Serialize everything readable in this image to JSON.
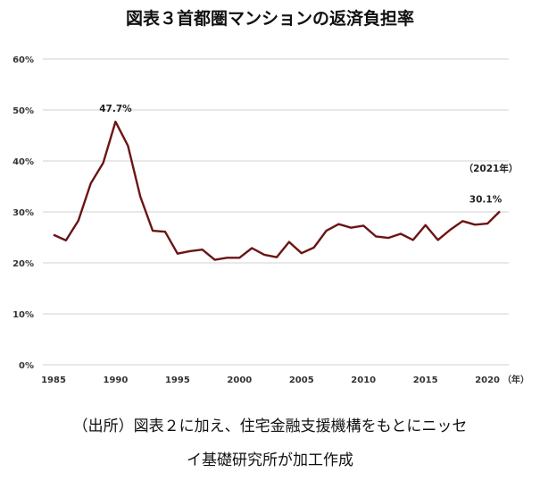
{
  "chart_data": {
    "type": "line",
    "title": "図表３首都圏マンションの返済負担率",
    "x": [
      1985,
      1986,
      1987,
      1988,
      1989,
      1990,
      1991,
      1992,
      1993,
      1994,
      1995,
      1996,
      1997,
      1998,
      1999,
      2000,
      2001,
      2002,
      2003,
      2004,
      2005,
      2006,
      2007,
      2008,
      2009,
      2010,
      2011,
      2012,
      2013,
      2014,
      2015,
      2016,
      2017,
      2018,
      2019,
      2020,
      2021
    ],
    "series": [
      {
        "values": [
          25.5,
          24.4,
          28.3,
          35.6,
          39.6,
          47.7,
          43.0,
          33.0,
          26.3,
          26.1,
          21.8,
          22.3,
          22.6,
          20.6,
          21.0,
          21.0,
          22.9,
          21.6,
          21.1,
          24.1,
          21.9,
          23.0,
          26.3,
          27.6,
          26.9,
          27.3,
          25.2,
          24.9,
          25.7,
          24.5,
          27.4,
          24.5,
          26.5,
          28.2,
          27.5,
          27.7,
          30.1
        ],
        "color": "#6b1414"
      }
    ],
    "xlim": [
      1985,
      2021
    ],
    "ylim": [
      0,
      60
    ],
    "x_ticks": [
      "1985",
      "1990",
      "1995",
      "2000",
      "2005",
      "2010",
      "2015",
      "2020"
    ],
    "x_unit": "（年）",
    "y_ticks": [
      "0%",
      "10%",
      "20%",
      "30%",
      "40%",
      "50%",
      "60%"
    ],
    "grid": true,
    "annotations": [
      {
        "text": "47.7%",
        "x": 1990,
        "y": 47.7
      },
      {
        "text": "（2021年）",
        "x": 2021,
        "y": 30.1
      },
      {
        "text": "30.1%",
        "x": 2021,
        "y": 30.1
      }
    ]
  },
  "source_line1": "（出所）図表２に加え、住宅金融支援機構をもとにニッセ",
  "source_line2": "イ基礎研究所が加工作成"
}
